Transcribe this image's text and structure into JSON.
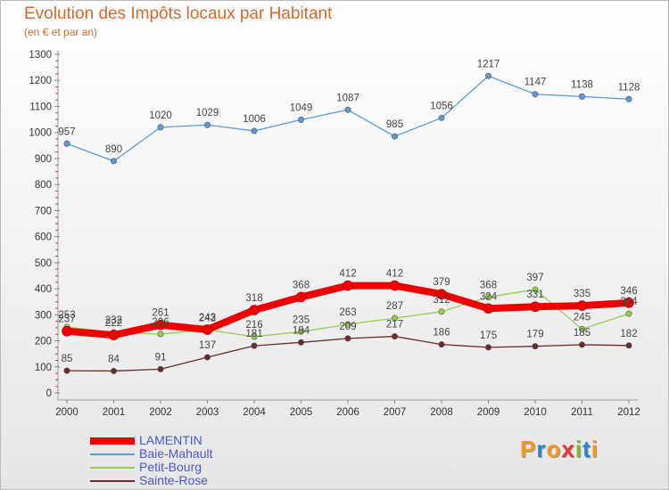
{
  "title": "Evolution des Impôts locaux par Habitant",
  "subtitle": "(en € et par an)",
  "logo": {
    "text": "Proxiti",
    "letters": [
      "P",
      "r",
      "o",
      "x",
      "i",
      "t",
      "i"
    ],
    "colors": [
      "#f29a1f",
      "#2c84c7",
      "#f29a1f",
      "#e7352f",
      "#7bbf2a",
      "#2c84c7",
      "#f29a1f"
    ]
  },
  "chart_data": {
    "type": "line",
    "title": "Evolution des Impôts locaux par Habitant",
    "subtitle": "(en € et par an)",
    "xlabel": "",
    "ylabel": "",
    "ylim": [
      0,
      1300
    ],
    "yticks": [
      0,
      100,
      200,
      300,
      400,
      500,
      600,
      700,
      800,
      900,
      1000,
      1100,
      1200,
      1300
    ],
    "categories": [
      "2000",
      "2001",
      "2002",
      "2003",
      "2004",
      "2005",
      "2006",
      "2007",
      "2008",
      "2009",
      "2010",
      "2011",
      "2012"
    ],
    "grid": false,
    "legend": "bottom-left",
    "series": [
      {
        "name": "LAMENTIN",
        "color": "#ee0000",
        "width": "thick",
        "values": [
          237,
          222,
          261,
          243,
          318,
          368,
          412,
          412,
          379,
          324,
          331,
          335,
          346
        ]
      },
      {
        "name": "Baie-Mahault",
        "color": "#5b9bd5",
        "width": "thin",
        "values": [
          957,
          890,
          1020,
          1029,
          1006,
          1049,
          1087,
          985,
          1056,
          1217,
          1147,
          1138,
          1128
        ]
      },
      {
        "name": "Petit-Bourg",
        "color": "#92d050",
        "width": "thin",
        "values": [
          253,
          232,
          226,
          242,
          216,
          235,
          263,
          287,
          312,
          368,
          397,
          245,
          304
        ]
      },
      {
        "name": "Sainte-Rose",
        "color": "#6b2b2b",
        "width": "thin",
        "values": [
          85,
          84,
          91,
          137,
          181,
          194,
          209,
          217,
          186,
          175,
          179,
          185,
          182
        ]
      }
    ]
  }
}
